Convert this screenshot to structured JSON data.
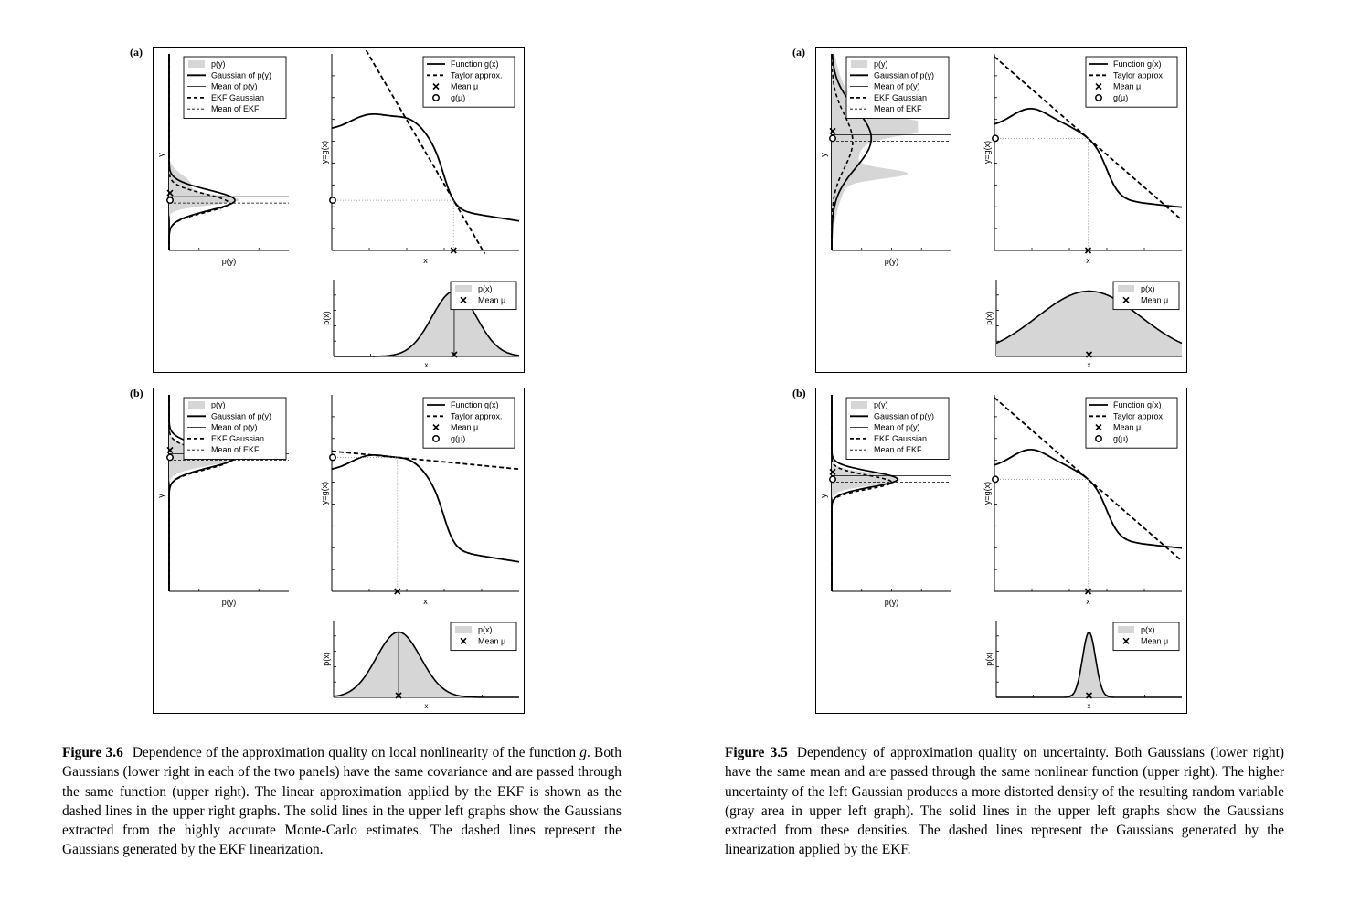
{
  "figures": [
    {
      "caption_number": "Figure 3.6",
      "caption_text": "Dependence of the approximation quality on local nonlinearity of the function g. Both Gaussians (lower right in each of the two panels) have the same covariance and are passed through the same function (upper right). The linear approximation applied by the EKF is shown as the dashed lines in the upper right graphs. The solid lines in the upper left graphs show the Gaussians extracted from the highly accurate Monte-Carlo estimates. The dashed lines represent the Gaussians generated by the EKF linearization.",
      "panels": [
        {
          "label": "(a)",
          "py_xlabel": "p(y)",
          "py_ylabel": "y",
          "g_xlabel": "x",
          "g_ylabel": "y=g(x)",
          "px_xlabel": "x",
          "px_ylabel": "p(x)"
        },
        {
          "label": "(b)",
          "py_xlabel": "p(y)",
          "py_ylabel": "y",
          "g_xlabel": "x",
          "g_ylabel": "y=g(x)",
          "px_xlabel": "x",
          "px_ylabel": "p(x)"
        }
      ]
    },
    {
      "caption_number": "Figure 3.5",
      "caption_text": "Dependency of approximation quality on uncertainty. Both Gaussians (lower right) have the same mean and are passed through the same nonlinear function (upper right). The higher uncertainty of the left Gaussian produces a more distorted density of the resulting random variable (gray area in upper left graph). The solid lines in the upper left graphs show the Gaussians extracted from these densities. The dashed lines represent the Gaussians generated by the linearization applied by the EKF.",
      "panels": [
        {
          "label": "(a)",
          "py_xlabel": "p(y)",
          "py_ylabel": "y",
          "g_xlabel": "x",
          "g_ylabel": "y=g(x)",
          "px_xlabel": "x",
          "px_ylabel": "p(x)"
        },
        {
          "label": "(b)",
          "py_xlabel": "p(y)",
          "py_ylabel": "y",
          "g_xlabel": "x",
          "g_ylabel": "y=g(x)",
          "px_xlabel": "x",
          "px_ylabel": "p(x)"
        }
      ]
    }
  ],
  "legends": {
    "py": [
      "p(y)",
      "Gaussian of p(y)",
      "Mean of p(y)",
      "EKF Gaussian",
      "Mean of EKF"
    ],
    "g": [
      "Function g(x)",
      "Taylor approx.",
      "Mean μ",
      "g(μ)"
    ],
    "px": [
      "p(x)",
      "Mean μ"
    ]
  },
  "colors": {
    "fill": "#d6d6d6",
    "line": "#000000",
    "dotted": "#888888"
  },
  "chart_data": [
    {
      "type": "line",
      "figure": "Figure 3.6",
      "panel": "(a)",
      "title": "",
      "xlabel": "x",
      "ylabel": "y=g(x)",
      "series": [
        {
          "name": "Function g(x)",
          "shape": "nonlinear"
        },
        {
          "name": "Taylor approx.",
          "shape": "tangent line at mean"
        }
      ],
      "mean_x_fraction": 0.65,
      "input_distribution": "narrow Gaussian, right side"
    },
    {
      "type": "line",
      "figure": "Figure 3.6",
      "panel": "(b)",
      "title": "",
      "xlabel": "x",
      "ylabel": "y=g(x)",
      "series": [
        {
          "name": "Function g(x)",
          "shape": "nonlinear"
        },
        {
          "name": "Taylor approx.",
          "shape": "tangent line at mean"
        }
      ],
      "mean_x_fraction": 0.35,
      "input_distribution": "narrow Gaussian, left side"
    },
    {
      "type": "line",
      "figure": "Figure 3.5",
      "panel": "(a)",
      "title": "",
      "xlabel": "x",
      "ylabel": "y=g(x)",
      "series": [
        {
          "name": "Function g(x)",
          "shape": "nonlinear"
        },
        {
          "name": "Taylor approx.",
          "shape": "tangent line at mean"
        }
      ],
      "mean_x_fraction": 0.5,
      "input_distribution": "wide Gaussian"
    },
    {
      "type": "line",
      "figure": "Figure 3.5",
      "panel": "(b)",
      "title": "",
      "xlabel": "x",
      "ylabel": "y=g(x)",
      "series": [
        {
          "name": "Function g(x)",
          "shape": "nonlinear"
        },
        {
          "name": "Taylor approx.",
          "shape": "tangent line at mean"
        }
      ],
      "mean_x_fraction": 0.5,
      "input_distribution": "very narrow Gaussian"
    }
  ]
}
